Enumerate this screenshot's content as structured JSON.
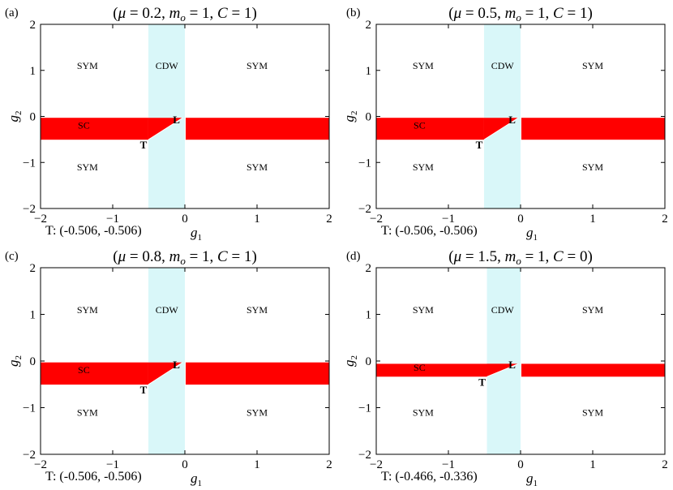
{
  "colors": {
    "sc": "#ff0000",
    "cdw": "#d9f7f9",
    "frame": "#000000"
  },
  "chart_data": [
    {
      "type": "heatmap",
      "panel_label": "(a)",
      "title_parts": {
        "mu": "0.2",
        "mo": "1",
        "C": "1"
      },
      "xlabel_main": "g",
      "xlabel_sub": "1",
      "ylabel_main": "g",
      "ylabel_sub": "2",
      "xlim": [
        -2,
        2
      ],
      "ylim": [
        -2,
        2
      ],
      "xticks": [
        "−2",
        "−1",
        "0",
        "1",
        "2"
      ],
      "yticks": [
        "2",
        "1",
        "0",
        "−1",
        "−2"
      ],
      "cdw_band": [
        -0.506,
        0.0
      ],
      "sc_left": {
        "xmax": -0.506,
        "ytop": -0.03,
        "ybottom": -0.506
      },
      "sc_right": {
        "xmin": 0.0,
        "ytop": -0.03,
        "ybottom": -0.506
      },
      "sc_wedge": [
        [
          -0.506,
          -0.03
        ],
        [
          -0.03,
          -0.03
        ],
        [
          -0.506,
          -0.506
        ]
      ],
      "regions": [
        {
          "name": "region-sym-upper-left",
          "text": "SYM",
          "x": -1.35,
          "y": 1.1
        },
        {
          "name": "region-cdw",
          "text": "CDW",
          "x": -0.25,
          "y": 1.1
        },
        {
          "name": "region-sym-upper-right",
          "text": "SYM",
          "x": 1.0,
          "y": 1.1
        },
        {
          "name": "region-sc",
          "text": "SC",
          "x": -1.4,
          "y": -0.19
        },
        {
          "name": "region-sym-lower-left",
          "text": "SYM",
          "x": -1.35,
          "y": -1.1
        },
        {
          "name": "region-sym-lower-right",
          "text": "SYM",
          "x": 1.0,
          "y": -1.1
        }
      ],
      "points": [
        {
          "name": "point-t",
          "text": "T",
          "x": -0.506,
          "y": -0.506
        },
        {
          "name": "point-l",
          "text": "L",
          "x": -0.14,
          "y": -0.1
        }
      ],
      "t_note": "T: (-0.506, -0.506)"
    },
    {
      "type": "heatmap",
      "panel_label": "(b)",
      "title_parts": {
        "mu": "0.5",
        "mo": "1",
        "C": "1"
      },
      "xlabel_main": "g",
      "xlabel_sub": "1",
      "ylabel_main": "g",
      "ylabel_sub": "2",
      "xlim": [
        -2,
        2
      ],
      "ylim": [
        -2,
        2
      ],
      "xticks": [
        "−2",
        "−1",
        "0",
        "1",
        "2"
      ],
      "yticks": [
        "2",
        "1",
        "0",
        "−1",
        "−2"
      ],
      "cdw_band": [
        -0.506,
        0.0
      ],
      "sc_left": {
        "xmax": -0.506,
        "ytop": -0.03,
        "ybottom": -0.506
      },
      "sc_right": {
        "xmin": 0.0,
        "ytop": -0.03,
        "ybottom": -0.506
      },
      "sc_wedge": [
        [
          -0.506,
          -0.03
        ],
        [
          -0.03,
          -0.03
        ],
        [
          -0.506,
          -0.506
        ]
      ],
      "regions": [
        {
          "name": "region-sym-upper-left",
          "text": "SYM",
          "x": -1.35,
          "y": 1.1
        },
        {
          "name": "region-cdw",
          "text": "CDW",
          "x": -0.25,
          "y": 1.1
        },
        {
          "name": "region-sym-upper-right",
          "text": "SYM",
          "x": 1.0,
          "y": 1.1
        },
        {
          "name": "region-sc",
          "text": "SC",
          "x": -1.4,
          "y": -0.19
        },
        {
          "name": "region-sym-lower-left",
          "text": "SYM",
          "x": -1.35,
          "y": -1.1
        },
        {
          "name": "region-sym-lower-right",
          "text": "SYM",
          "x": 1.0,
          "y": -1.1
        }
      ],
      "points": [
        {
          "name": "point-t",
          "text": "T",
          "x": -0.506,
          "y": -0.506
        },
        {
          "name": "point-l",
          "text": "L",
          "x": -0.14,
          "y": -0.1
        }
      ],
      "t_note": "T: (-0.506, -0.506)"
    },
    {
      "type": "heatmap",
      "panel_label": "(c)",
      "title_parts": {
        "mu": "0.8",
        "mo": "1",
        "C": "1"
      },
      "xlabel_main": "g",
      "xlabel_sub": "1",
      "ylabel_main": "g",
      "ylabel_sub": "2",
      "xlim": [
        -2,
        2
      ],
      "ylim": [
        -2,
        2
      ],
      "xticks": [
        "−2",
        "−1",
        "0",
        "1",
        "2"
      ],
      "yticks": [
        "2",
        "1",
        "0",
        "−1",
        "−2"
      ],
      "cdw_band": [
        -0.506,
        0.0
      ],
      "sc_left": {
        "xmax": -0.506,
        "ytop": -0.03,
        "ybottom": -0.506
      },
      "sc_right": {
        "xmin": 0.0,
        "ytop": -0.03,
        "ybottom": -0.506
      },
      "sc_wedge": [
        [
          -0.506,
          -0.03
        ],
        [
          -0.03,
          -0.03
        ],
        [
          -0.506,
          -0.506
        ]
      ],
      "regions": [
        {
          "name": "region-sym-upper-left",
          "text": "SYM",
          "x": -1.35,
          "y": 1.1
        },
        {
          "name": "region-cdw",
          "text": "CDW",
          "x": -0.25,
          "y": 1.1
        },
        {
          "name": "region-sym-upper-right",
          "text": "SYM",
          "x": 1.0,
          "y": 1.1
        },
        {
          "name": "region-sc",
          "text": "SC",
          "x": -1.4,
          "y": -0.19
        },
        {
          "name": "region-sym-lower-left",
          "text": "SYM",
          "x": -1.35,
          "y": -1.1
        },
        {
          "name": "region-sym-lower-right",
          "text": "SYM",
          "x": 1.0,
          "y": -1.1
        }
      ],
      "points": [
        {
          "name": "point-t",
          "text": "T",
          "x": -0.506,
          "y": -0.506
        },
        {
          "name": "point-l",
          "text": "L",
          "x": -0.14,
          "y": -0.1
        }
      ],
      "t_note": "T: (-0.506, -0.506)"
    },
    {
      "type": "heatmap",
      "panel_label": "(d)",
      "title_parts": {
        "mu": "1.5",
        "mo": "1",
        "C": "0"
      },
      "xlabel_main": "g",
      "xlabel_sub": "1",
      "ylabel_main": "g",
      "ylabel_sub": "2",
      "xlim": [
        -2,
        2
      ],
      "ylim": [
        -2,
        2
      ],
      "xticks": [
        "−2",
        "−1",
        "0",
        "1",
        "2"
      ],
      "yticks": [
        "2",
        "1",
        "0",
        "−1",
        "−2"
      ],
      "cdw_band": [
        -0.466,
        0.0
      ],
      "sc_left": {
        "xmax": -0.466,
        "ytop": -0.06,
        "ybottom": -0.336
      },
      "sc_right": {
        "xmin": 0.0,
        "ytop": -0.06,
        "ybottom": -0.336
      },
      "sc_wedge": [
        [
          -0.466,
          -0.06
        ],
        [
          -0.03,
          -0.06
        ],
        [
          -0.466,
          -0.336
        ]
      ],
      "regions": [
        {
          "name": "region-sym-upper-left",
          "text": "SYM",
          "x": -1.35,
          "y": 1.1
        },
        {
          "name": "region-cdw",
          "text": "CDW",
          "x": -0.25,
          "y": 1.1
        },
        {
          "name": "region-sym-upper-right",
          "text": "SYM",
          "x": 1.0,
          "y": 1.1
        },
        {
          "name": "region-sc",
          "text": "SC",
          "x": -1.4,
          "y": -0.14
        },
        {
          "name": "region-sym-lower-left",
          "text": "SYM",
          "x": -1.35,
          "y": -1.1
        },
        {
          "name": "region-sym-lower-right",
          "text": "SYM",
          "x": 1.0,
          "y": -1.1
        }
      ],
      "points": [
        {
          "name": "point-t",
          "text": "T",
          "x": -0.466,
          "y": -0.336
        },
        {
          "name": "point-l",
          "text": "L",
          "x": -0.14,
          "y": -0.1
        }
      ],
      "t_note": "T: (-0.466, -0.336)"
    }
  ]
}
